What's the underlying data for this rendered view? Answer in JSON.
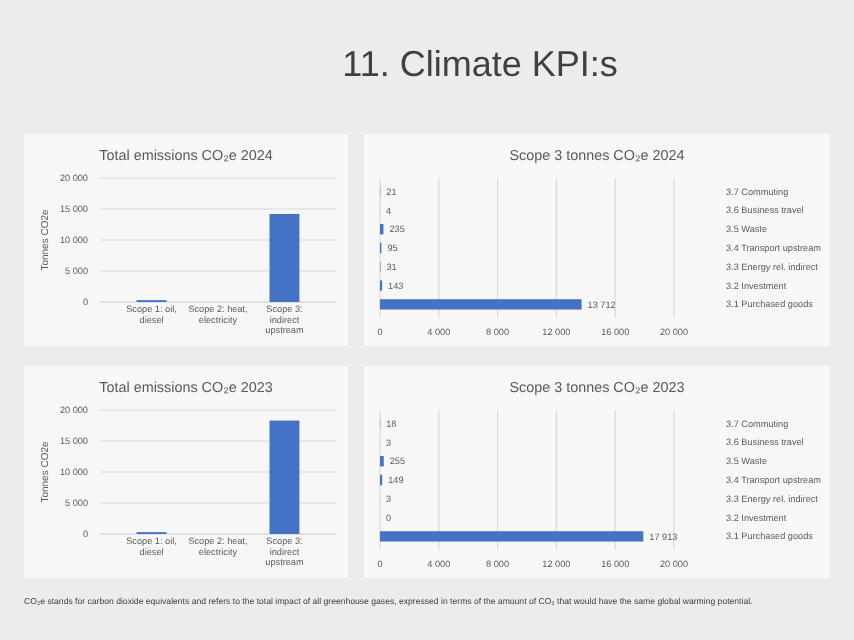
{
  "chart_data": [
    {
      "type": "bar",
      "title": "Total emissions CO₂e 2024",
      "ylabel": "Tonnes CO2e",
      "categories": [
        "Scope 1: oil, diesel",
        "Scope 2: heat, electricity",
        "Scope 3: indirect upstream"
      ],
      "values": [
        300,
        0,
        14200
      ],
      "color": "#4472c4",
      "ylim": [
        0,
        20000
      ],
      "yticks": [
        0,
        {
          "value": 5000,
          "label": "5 000"
        },
        {
          "value": 10000,
          "label": "10 000"
        },
        {
          "value": 15000,
          "label": "15 000"
        },
        {
          "value": 20000,
          "label": "20 000"
        }
      ],
      "grid": "y",
      "annotations": [
        "11. Climate KPI:s"
      ]
    },
    {
      "type": "bar",
      "orientation": "horizontal",
      "title": "Scope 3 tonnes CO₂e 2024",
      "categories": [
        "3.7 Commuting",
        "3.6 Business travel",
        "3.5 Waste",
        "3.4 Transport upstream",
        "3.3 Energy rel. indirect",
        "3.2 Investment",
        "3.1 Purchased goods"
      ],
      "values": [
        21,
        4,
        235,
        95,
        31,
        143,
        13712
      ],
      "value_labels": [
        "21",
        "4",
        "235",
        "95",
        "31",
        "143",
        "13 712"
      ],
      "color": "#4472c4",
      "xlim": [
        0,
        20000
      ],
      "xticks": [
        0,
        {
          "value": 4000,
          "label": "4 000"
        },
        {
          "value": 8000,
          "label": "8 000"
        },
        {
          "value": 12000,
          "label": "12 000"
        },
        {
          "value": 16000,
          "label": "16 000"
        },
        {
          "value": 20000,
          "label": "20 000"
        }
      ],
      "grid": "x"
    },
    {
      "type": "bar",
      "title": "Total emissions CO₂e 2023",
      "ylabel": "Tonnes CO2e",
      "categories": [
        "Scope 1: oil, diesel",
        "Scope 2: heat, electricity",
        "Scope 3: indirect upstream"
      ],
      "values": [
        300,
        0,
        18300
      ],
      "color": "#4472c4",
      "ylim": [
        0,
        20000
      ],
      "yticks": [
        0,
        {
          "value": 5000,
          "label": "5 000"
        },
        {
          "value": 10000,
          "label": "10 000"
        },
        {
          "value": 15000,
          "label": "15 000"
        },
        {
          "value": 20000,
          "label": "20 000"
        }
      ],
      "grid": "y"
    },
    {
      "type": "bar",
      "orientation": "horizontal",
      "title": "Scope 3 tonnes CO₂e 2023",
      "categories": [
        "3.7 Commuting",
        "3.6 Business travel",
        "3.5 Waste",
        "3.4 Transport upstream",
        "3.3 Energy rel. indirect",
        "3.2 Investment",
        "3.1 Purchased goods"
      ],
      "values": [
        18,
        3,
        255,
        149,
        3,
        0,
        17913
      ],
      "value_labels": [
        "18",
        "3",
        "255",
        "149",
        "3",
        "0",
        "17 913"
      ],
      "color": "#4472c4",
      "xlim": [
        0,
        20000
      ],
      "xticks": [
        0,
        {
          "value": 4000,
          "label": "4 000"
        },
        {
          "value": 8000,
          "label": "8 000"
        },
        {
          "value": 12000,
          "label": "12 000"
        },
        {
          "value": 16000,
          "label": "16 000"
        },
        {
          "value": 20000,
          "label": "20 000"
        }
      ],
      "grid": "x",
      "annotations": [
        "CO₂e stands for carbon dioxide equivalents and refers to the total impact of all greenhouse gases, expressed in terms of the amount of CO₂ that would have the same global warming potential."
      ]
    }
  ]
}
